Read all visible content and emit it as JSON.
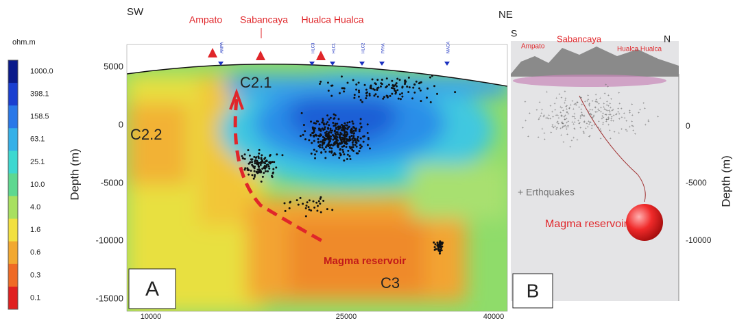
{
  "colorbar": {
    "unit": "ohm.m",
    "labels": [
      "1000.0",
      "398.1",
      "158.5",
      "63.1",
      "25.1",
      "10.0",
      "4.0",
      "1.6",
      "0.6",
      "0.3",
      "0.1"
    ]
  },
  "panel_a": {
    "left_direction": "SW",
    "right_direction": "NE",
    "volcanoes": [
      "Ampato",
      "Sabancaya",
      "Hualca Hualca"
    ],
    "stations": [
      "AMPA",
      "HLC3",
      "HLC1",
      "HLC2",
      "PAYA",
      "MACA"
    ],
    "y_axis_label": "Depth (m)",
    "y_ticks": [
      "5000",
      "0",
      "-5000",
      "-10000",
      "-15000"
    ],
    "x_ticks": [
      "10000",
      "25000",
      "40000"
    ],
    "labels": {
      "c21": "C2.1",
      "c22": "C2.2",
      "c3": "C3",
      "reservoir": "Magma reservoir"
    },
    "letter": "A"
  },
  "panel_b": {
    "left_direction": "S",
    "right_direction": "N",
    "volcanoes": [
      "Ampato",
      "Sabancaya",
      "Hualca Hualca"
    ],
    "earthquakes": "+ Erthquakes",
    "reservoir": "Magma reservoir",
    "y_axis_label": "Depth (m)",
    "y_ticks": [
      "0",
      "-5000",
      "-10000"
    ],
    "letter": "B"
  }
}
